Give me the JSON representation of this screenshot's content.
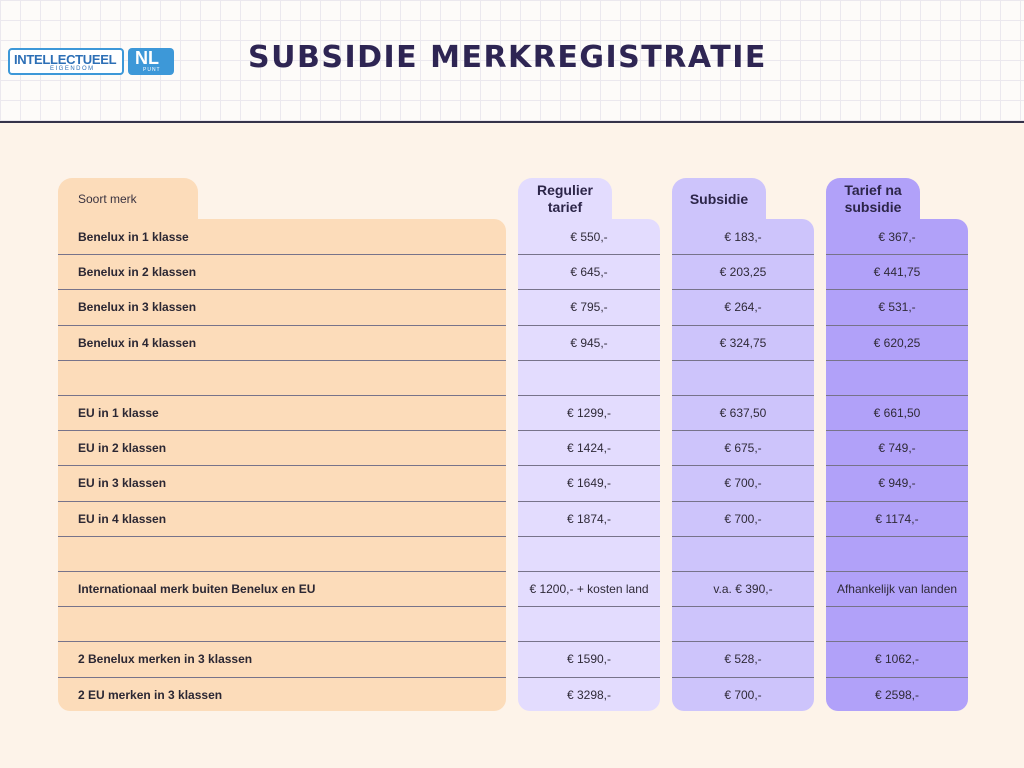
{
  "header": {
    "logo_text": "INTELLECTUEEL",
    "logo_sub": "EIGENDOM",
    "logo_nl": "NL",
    "logo_punt": "PUNT",
    "title": "SUBSIDIE MERKREGISTRATIE"
  },
  "colors": {
    "background": "#fdf3e9",
    "col_label": "#fcdcba",
    "col_regulier": "#e3dcfe",
    "col_subsidie": "#cdc4fb",
    "col_na_subsidie": "#b1a1f9",
    "title_color": "#2e2553"
  },
  "table": {
    "columns": [
      {
        "label": "Soort merk"
      },
      {
        "label": "Regulier\ntarief"
      },
      {
        "label": "Subsidie"
      },
      {
        "label": "Tarief na\nsubsidie"
      }
    ],
    "rows": [
      {
        "label": "Benelux in 1 klasse",
        "regulier": "€ 550,-",
        "subsidie": "€ 183,-",
        "na_subsidie": "€ 367,-"
      },
      {
        "label": "Benelux in 2 klassen",
        "regulier": "€ 645,-",
        "subsidie": "€ 203,25",
        "na_subsidie": "€ 441,75"
      },
      {
        "label": "Benelux in 3 klassen",
        "regulier": "€ 795,-",
        "subsidie": "€ 264,-",
        "na_subsidie": "€ 531,-"
      },
      {
        "label": "Benelux in 4 klassen",
        "regulier": "€ 945,-",
        "subsidie": "€ 324,75",
        "na_subsidie": "€ 620,25"
      },
      {
        "label": "",
        "regulier": "",
        "subsidie": "",
        "na_subsidie": ""
      },
      {
        "label": "EU in 1 klasse",
        "regulier": "€ 1299,-",
        "subsidie": "€ 637,50",
        "na_subsidie": "€ 661,50"
      },
      {
        "label": "EU in 2 klassen",
        "regulier": "€ 1424,-",
        "subsidie": "€ 675,-",
        "na_subsidie": "€ 749,-"
      },
      {
        "label": "EU in 3 klassen",
        "regulier": "€ 1649,-",
        "subsidie": "€ 700,-",
        "na_subsidie": "€ 949,-"
      },
      {
        "label": "EU in 4 klassen",
        "regulier": "€ 1874,-",
        "subsidie": "€ 700,-",
        "na_subsidie": "€ 1174,-"
      },
      {
        "label": "",
        "regulier": "",
        "subsidie": "",
        "na_subsidie": ""
      },
      {
        "label": "Internationaal merk buiten Benelux en EU",
        "regulier": "€ 1200,- + kosten land",
        "subsidie": "v.a. € 390,-",
        "na_subsidie": "Afhankelijk van landen"
      },
      {
        "label": "",
        "regulier": "",
        "subsidie": "",
        "na_subsidie": ""
      },
      {
        "label": "2 Benelux merken in 3 klassen",
        "regulier": "€ 1590,-",
        "subsidie": "€ 528,-",
        "na_subsidie": "€ 1062,-"
      },
      {
        "label": "2 EU merken in 3 klassen",
        "regulier": "€ 3298,-",
        "subsidie": "€ 700,-",
        "na_subsidie": "€ 2598,-"
      }
    ]
  }
}
